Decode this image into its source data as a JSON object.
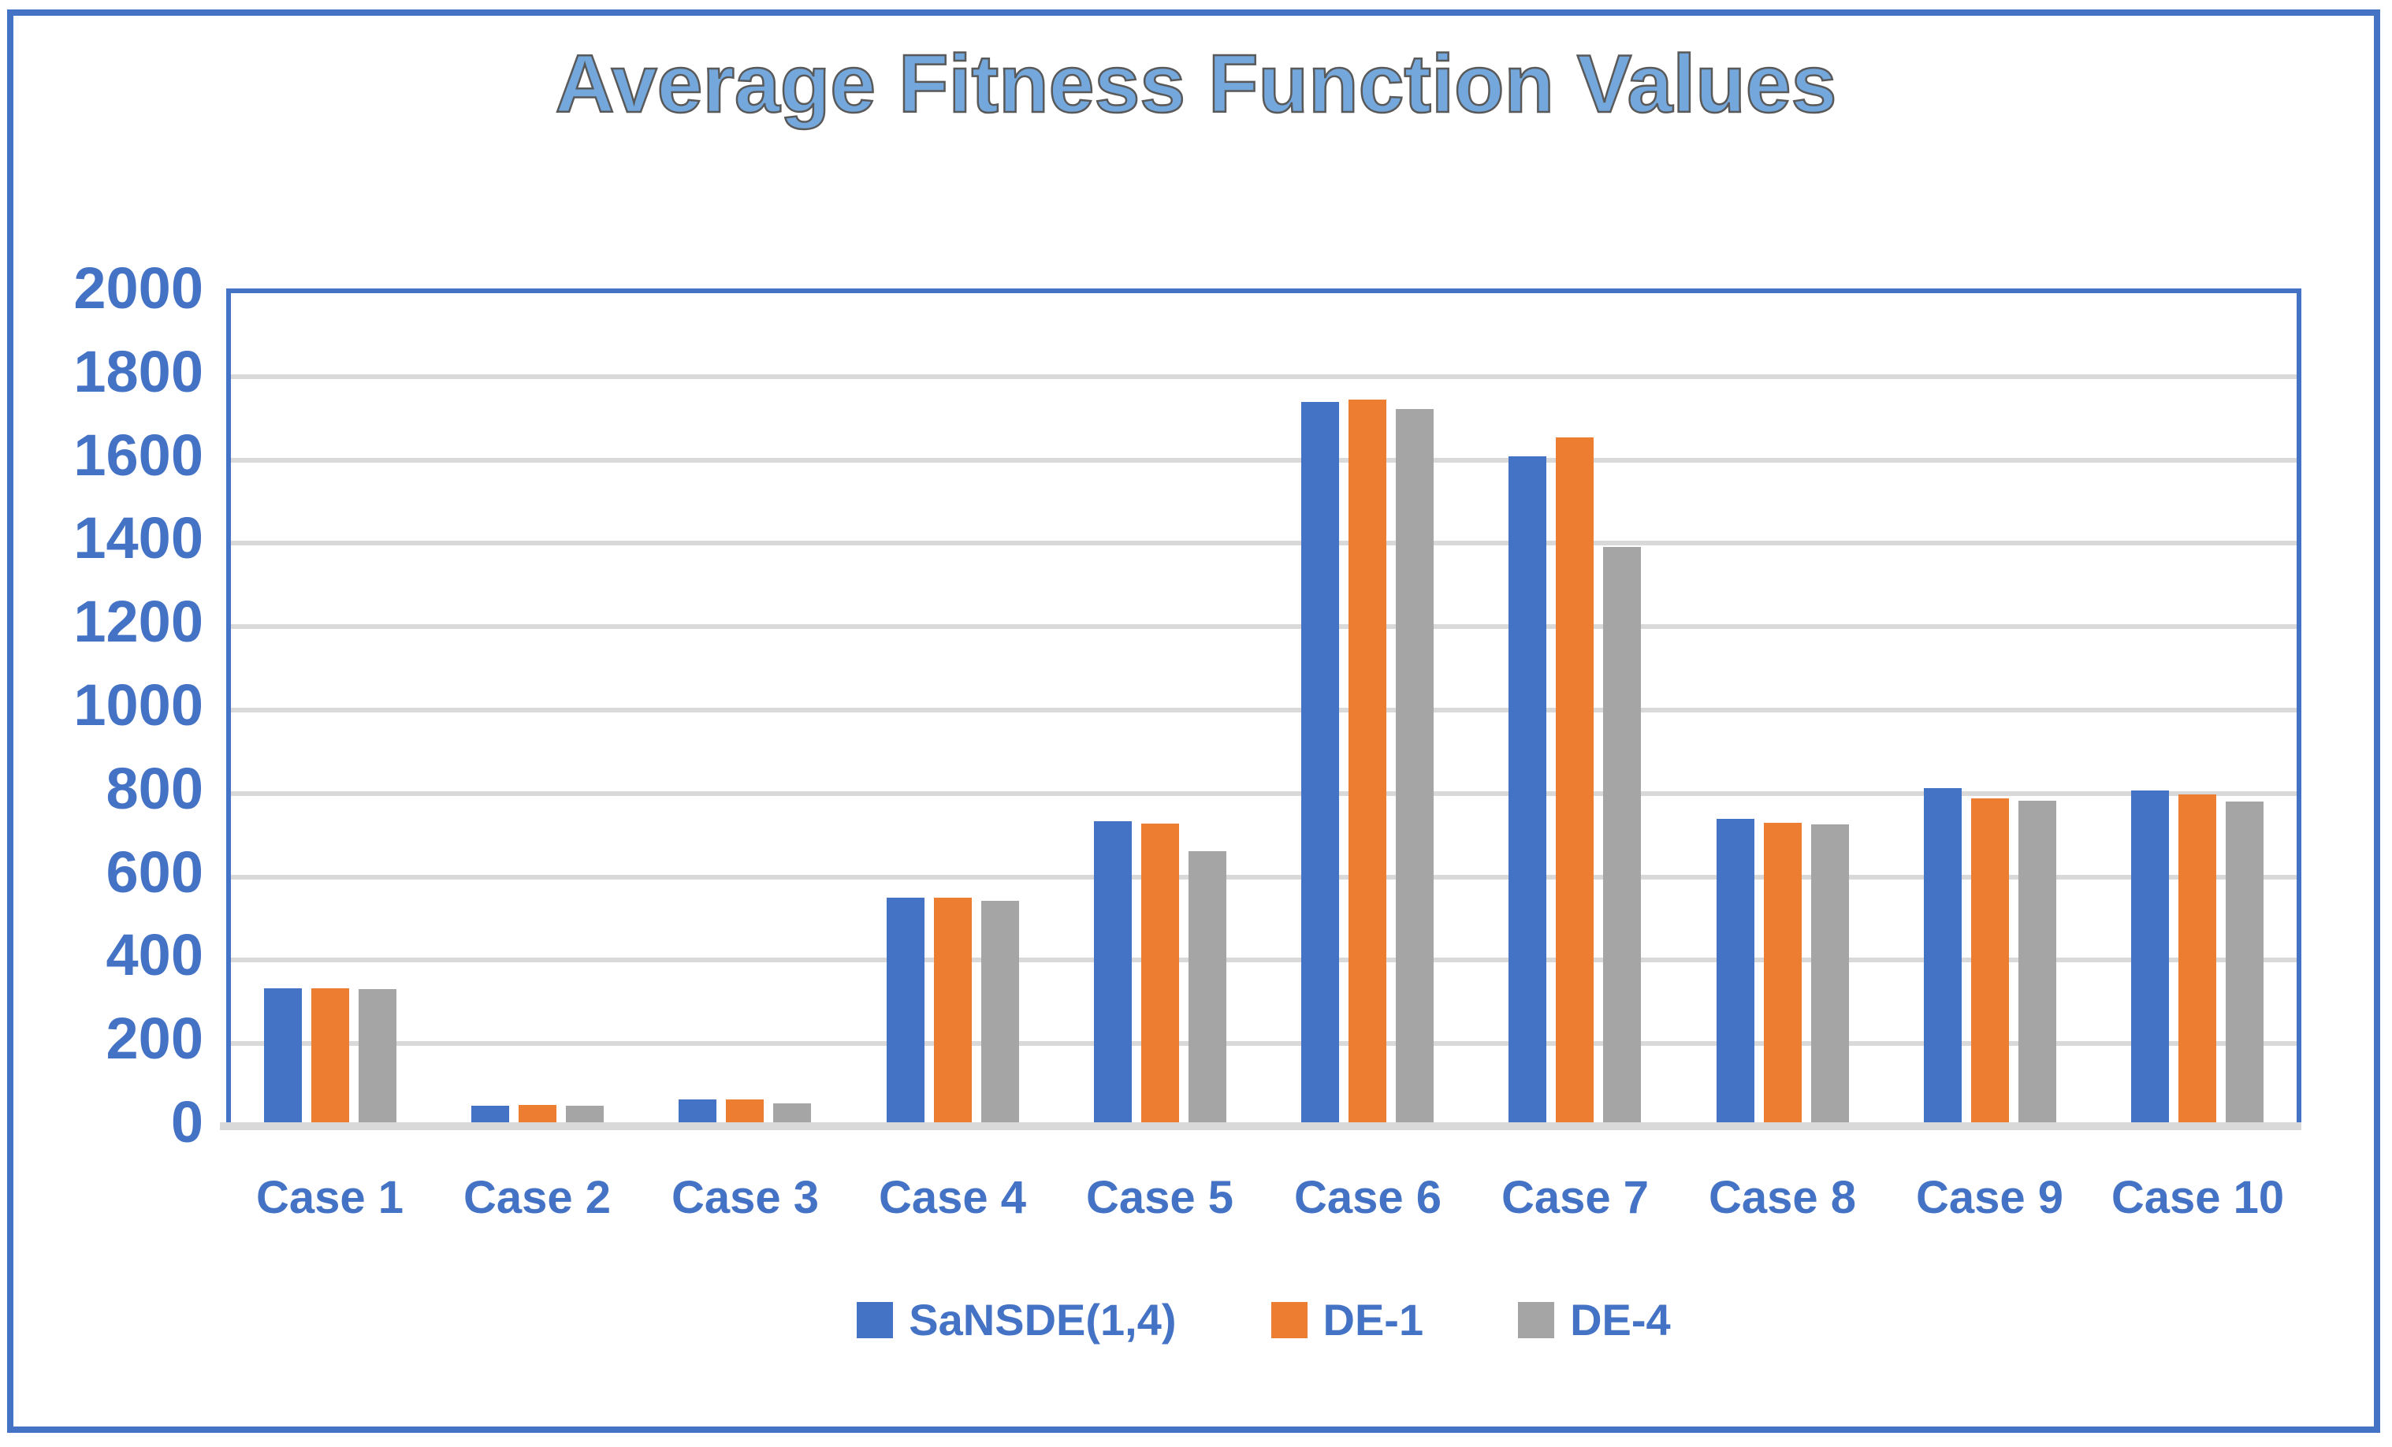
{
  "chart_data": {
    "type": "bar",
    "title": "Average Fitness Function Values",
    "categories": [
      "Case 1",
      "Case 2",
      "Case 3",
      "Case 4",
      "Case 5",
      "Case 6",
      "Case 7",
      "Case 8",
      "Case 9",
      "Case 10"
    ],
    "series": [
      {
        "name": "SaNSDE(1,4)",
        "color": "#4472C4",
        "values": [
          321,
          40,
          55,
          539,
          723,
          1727,
          1597,
          728,
          801,
          795
        ]
      },
      {
        "name": "DE-1",
        "color": "#ED7D31",
        "values": [
          321,
          42,
          55,
          539,
          716,
          1733,
          1643,
          719,
          776,
          786
        ]
      },
      {
        "name": "DE-4",
        "color": "#A5A5A5",
        "values": [
          320,
          40,
          46,
          531,
          650,
          1710,
          1380,
          714,
          772,
          770
        ]
      }
    ],
    "ylim": [
      0,
      2000
    ],
    "ytick_step": 200,
    "yticks": [
      0,
      200,
      400,
      600,
      800,
      1000,
      1200,
      1400,
      1600,
      1800,
      2000
    ],
    "grid": true,
    "legend_position": "bottom",
    "colors": {
      "accent_blue": "#4472C4",
      "title_fill": "#74A7DC",
      "title_outline": "#595959",
      "gridline": "#D9D9D9",
      "frame_border": "#4472C4"
    }
  }
}
